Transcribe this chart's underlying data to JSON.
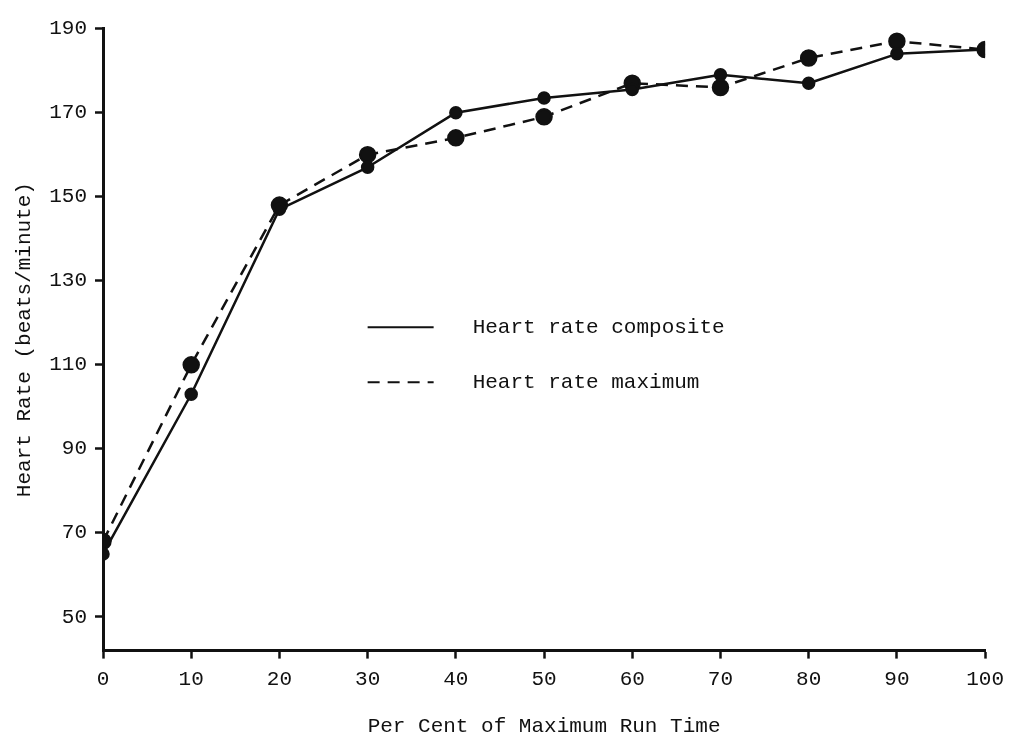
{
  "chart_data": {
    "type": "line",
    "xlabel": "Per Cent of Maximum Run Time",
    "ylabel": "Heart Rate (beats/minute)",
    "x": [
      0,
      10,
      20,
      30,
      40,
      50,
      60,
      70,
      80,
      90,
      100
    ],
    "xlim": [
      0,
      100
    ],
    "xticks": [
      0,
      10,
      20,
      30,
      40,
      50,
      60,
      70,
      80,
      90,
      100
    ],
    "ylim": [
      42,
      190
    ],
    "yticks": [
      50,
      70,
      90,
      110,
      130,
      150,
      170,
      190
    ],
    "grid": false,
    "legend": "center",
    "marker": "circle",
    "series": [
      {
        "name": "Heart rate composite",
        "color": "#111111",
        "line_style": "solid",
        "values": [
          65,
          103,
          147,
          157,
          170,
          173.5,
          175.5,
          179,
          177,
          184,
          185
        ]
      },
      {
        "name": "Heart rate maximum",
        "color": "#111111",
        "line_style": "dashed",
        "values": [
          68,
          110,
          148,
          160,
          164,
          169,
          177,
          176,
          183,
          187,
          185
        ]
      }
    ]
  }
}
